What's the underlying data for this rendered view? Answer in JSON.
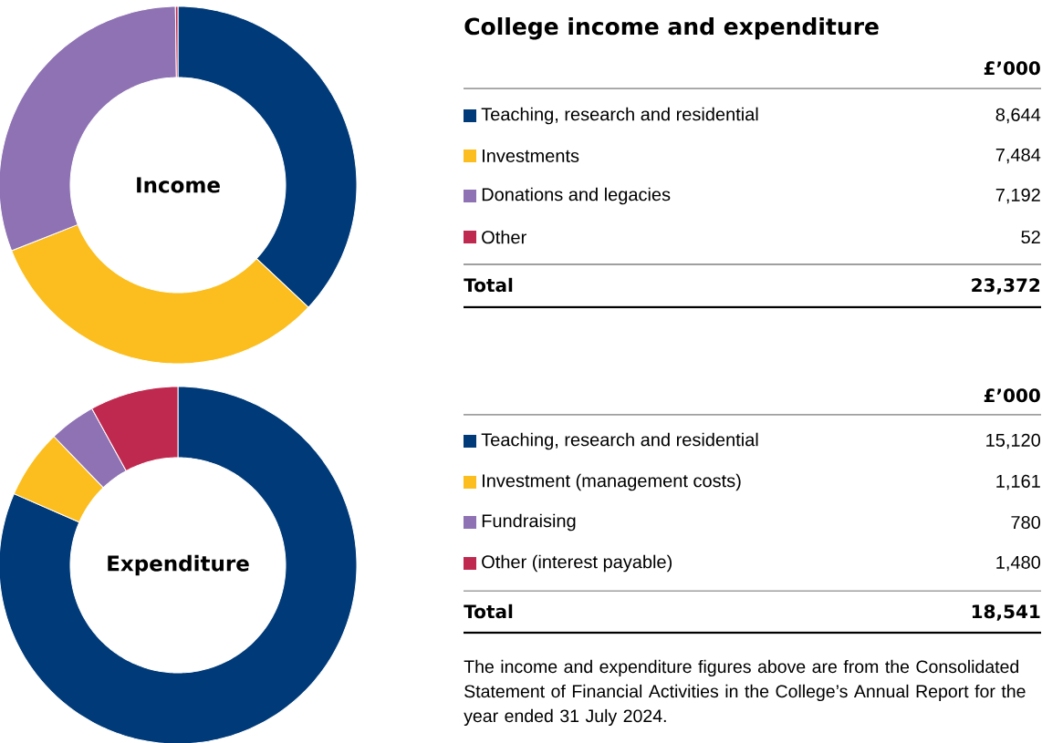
{
  "chart_data": [
    {
      "type": "donut",
      "title": "College income and expenditure",
      "subtitle": "Income",
      "legend_title": "£’000",
      "categories": [
        "Teaching, research and residential",
        "Investments",
        "Donations and legacies",
        "Other"
      ],
      "values": [
        8644,
        7484,
        7192,
        52
      ],
      "value_labels": [
        "8,644",
        "7,484",
        "7,192",
        "52"
      ],
      "colors": [
        "#003a78",
        "#fbbe1e",
        "#8e72b3",
        "#c0294f"
      ],
      "annotations": [
        "Total",
        "23,372"
      ],
      "legend": "right"
    },
    {
      "type": "donut",
      "subtitle": "Expenditure",
      "legend_title": "£’000",
      "categories": [
        "Teaching, research and residential",
        "Investment (management costs)",
        "Fundraising",
        "Other (interest payable)"
      ],
      "values": [
        15120,
        1161,
        780,
        1480
      ],
      "value_labels": [
        "15,120",
        "1,161",
        "780",
        "1,480"
      ],
      "colors": [
        "#003a78",
        "#fbbe1e",
        "#8e72b3",
        "#c0294f"
      ],
      "annotations": [
        "Total",
        "18,541",
        "The income and expenditure figures above are from the Consolidated Statement of Financial Activities in the College’s Annual Report for the year ended 31 July 2024."
      ],
      "legend": "right"
    }
  ]
}
